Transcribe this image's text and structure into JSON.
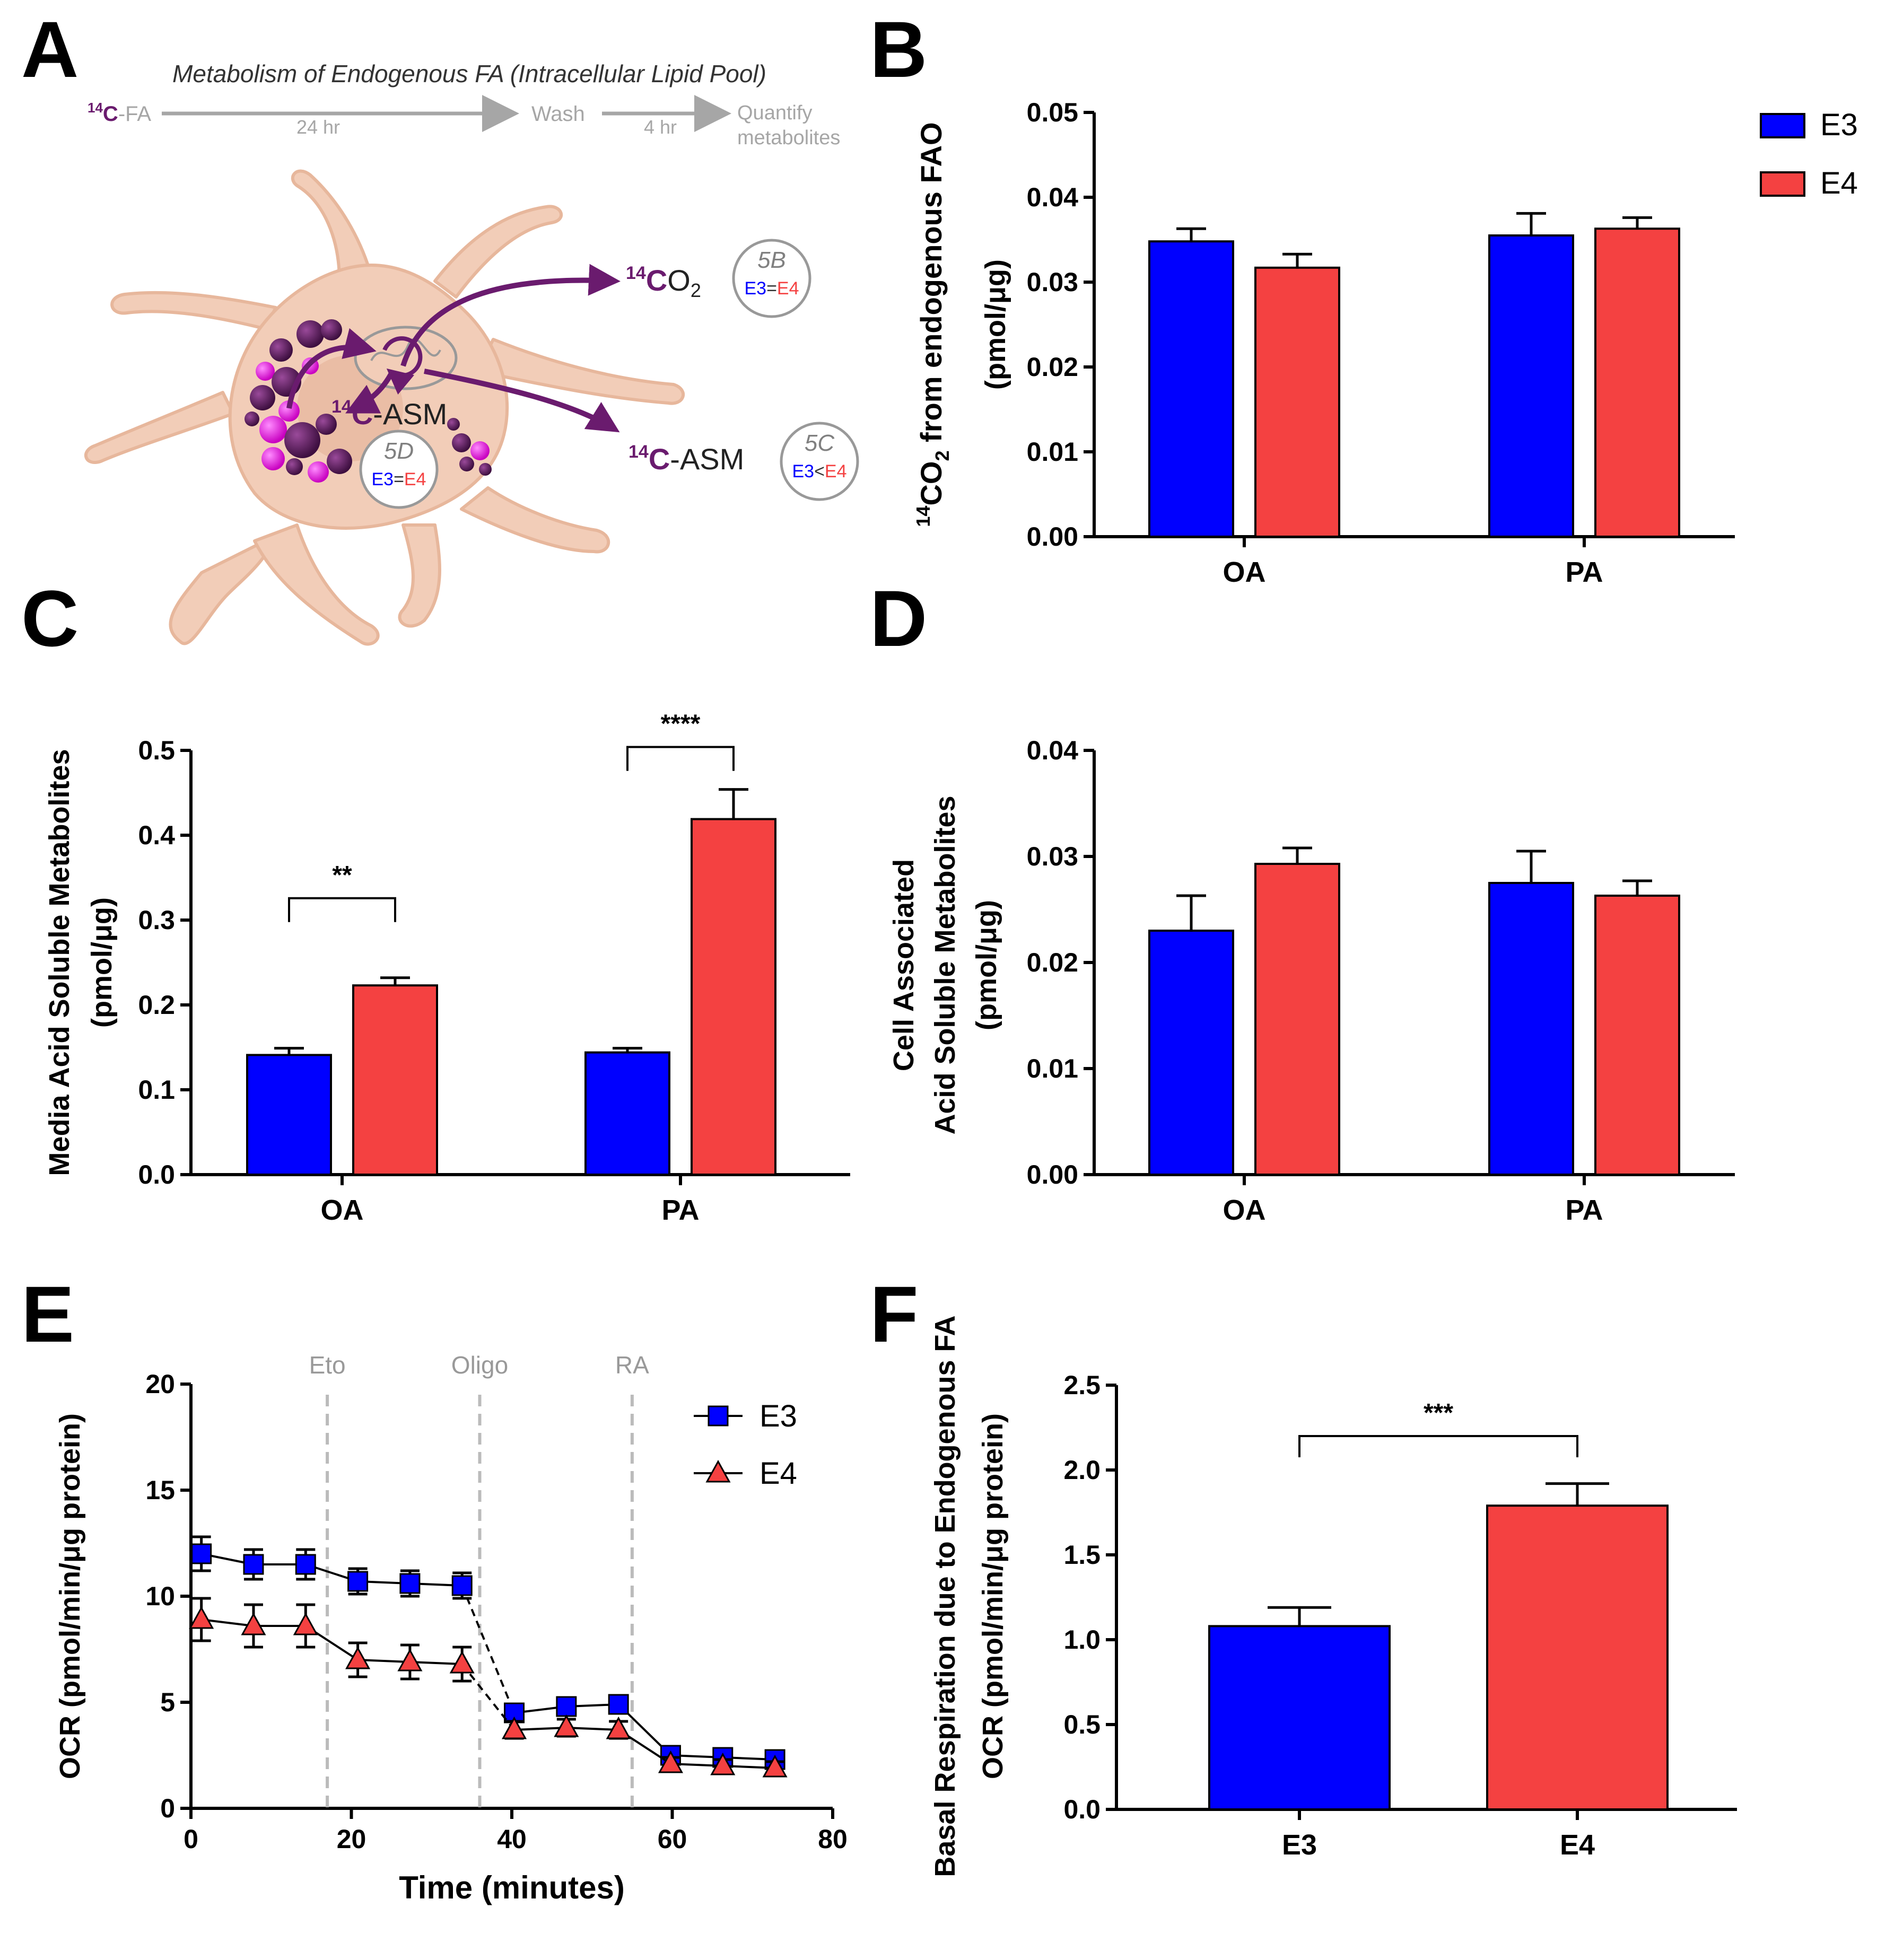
{
  "panel_letters": {
    "a": "A",
    "b": "B",
    "c": "C",
    "d": "D",
    "e": "E",
    "f": "F"
  },
  "colors": {
    "e3": "#0000FF",
    "e4": "#F44141",
    "axis": "#000000",
    "dash": "#BBBBBB",
    "cell": "#F2CDB8",
    "cell_edge": "#E7B79C",
    "dark_droplet": "#5C1D5C",
    "pink_droplet": "#E81FE0",
    "purple": "#6A1B6E",
    "muted": "#808080"
  },
  "schematic": {
    "title": "Metabolism of Endogenous FA (Intracellular Lipid Pool)",
    "fa_label": "FA",
    "isotope": "14",
    "c": "C",
    "hyphen": "-",
    "step1": "24 hr",
    "wash": "Wash",
    "step2": "4 hr",
    "quantify_1": "Quantify",
    "quantify_2": "metabolites",
    "co2_o": "O",
    "co2_sub": "2",
    "asm": "ASM",
    "badge_5b": {
      "ref": "5B",
      "left": "E3",
      "op": "=",
      "right": "E4"
    },
    "badge_5c": {
      "ref": "5C",
      "left": "E3",
      "op": "<",
      "right": "E4"
    },
    "badge_5d": {
      "ref": "5D",
      "left": "E3",
      "op": "=",
      "right": "E4"
    }
  },
  "legend_b": [
    {
      "label": "E3",
      "color_key": "e3"
    },
    {
      "label": "E4",
      "color_key": "e4"
    }
  ],
  "chart_data": [
    {
      "id": "B",
      "type": "bar",
      "ylabel_sup": "14",
      "ylabel_main": "CO",
      "ylabel_sub": "2",
      "ylabel_rest": " from endogenous  FAO",
      "ylabel_units": "(pmol/μg)",
      "ylim": [
        0,
        0.05
      ],
      "yticks": [
        "0.00",
        "0.01",
        "0.02",
        "0.03",
        "0.04",
        "0.05"
      ],
      "categories": [
        "OA",
        "PA"
      ],
      "series": [
        {
          "name": "E3",
          "values": [
            0.0348,
            0.0355
          ],
          "errors": [
            0.0015,
            0.0026
          ]
        },
        {
          "name": "E4",
          "values": [
            0.0317,
            0.0363
          ],
          "errors": [
            0.0016,
            0.0013
          ]
        }
      ],
      "significance": []
    },
    {
      "id": "C",
      "type": "bar",
      "ylabel_lines": [
        "Media Acid Soluble Metabolites",
        "(pmol/μg)"
      ],
      "ylim": [
        0,
        0.5
      ],
      "yticks": [
        "0.0",
        "0.1",
        "0.2",
        "0.3",
        "0.4",
        "0.5"
      ],
      "categories": [
        "OA",
        "PA"
      ],
      "series": [
        {
          "name": "E3",
          "values": [
            0.141,
            0.144
          ],
          "errors": [
            0.008,
            0.005
          ]
        },
        {
          "name": "E4",
          "values": [
            0.223,
            0.419
          ],
          "errors": [
            0.009,
            0.035
          ]
        }
      ],
      "significance": [
        {
          "category": "OA",
          "label": "**"
        },
        {
          "category": "PA",
          "label": "****"
        }
      ]
    },
    {
      "id": "D",
      "type": "bar",
      "ylabel_lines": [
        "Cell Associated",
        "Acid Soluble Metabolites",
        "(pmol/μg)"
      ],
      "ylim": [
        0,
        0.04
      ],
      "yticks": [
        "0.00",
        "0.01",
        "0.02",
        "0.03",
        "0.04"
      ],
      "categories": [
        "OA",
        "PA"
      ],
      "series": [
        {
          "name": "E3",
          "values": [
            0.023,
            0.0275
          ],
          "errors": [
            0.0033,
            0.003
          ]
        },
        {
          "name": "E4",
          "values": [
            0.0293,
            0.0263
          ],
          "errors": [
            0.0015,
            0.0014
          ]
        }
      ],
      "significance": []
    },
    {
      "id": "E",
      "type": "line",
      "xlabel": "Time (minutes)",
      "ylabel": "OCR (pmol/min/μg protein)",
      "xlim": [
        0,
        80
      ],
      "ylim": [
        0,
        20
      ],
      "xticks": [
        "0",
        "20",
        "40",
        "60",
        "80"
      ],
      "yticks": [
        "0",
        "5",
        "10",
        "15",
        "20"
      ],
      "injections": [
        {
          "label": "Eto",
          "x": 17
        },
        {
          "label": "Oligo",
          "x": 36
        },
        {
          "label": "RA",
          "x": 55
        }
      ],
      "x": [
        1.3,
        7.8,
        14.3,
        20.8,
        27.3,
        33.8,
        40.3,
        46.8,
        53.3,
        59.8,
        66.3,
        72.8
      ],
      "series": [
        {
          "name": "E3",
          "marker": "square",
          "values": [
            12.0,
            11.5,
            11.5,
            10.7,
            10.6,
            10.5,
            4.5,
            4.8,
            4.9,
            2.5,
            2.4,
            2.3
          ],
          "errors": [
            0.8,
            0.7,
            0.7,
            0.6,
            0.6,
            0.6,
            0.4,
            0.4,
            0.4,
            0.3,
            0.3,
            0.3
          ]
        },
        {
          "name": "E4",
          "marker": "triangle",
          "values": [
            8.9,
            8.6,
            8.6,
            7.0,
            6.9,
            6.8,
            3.7,
            3.8,
            3.7,
            2.1,
            2.0,
            1.9
          ],
          "errors": [
            1.0,
            1.0,
            1.0,
            0.8,
            0.8,
            0.8,
            0.4,
            0.4,
            0.4,
            0.3,
            0.3,
            0.3
          ]
        }
      ]
    },
    {
      "id": "F",
      "type": "bar",
      "ylabel_lines": [
        "Basal Respiration due to Endogenous FA",
        "OCR (pmol/min/μg protein)"
      ],
      "ylim": [
        0,
        2.5
      ],
      "yticks": [
        "0.0",
        "0.5",
        "1.0",
        "1.5",
        "2.0",
        "2.5"
      ],
      "categories": [
        "E3",
        "E4"
      ],
      "values": [
        1.08,
        1.79
      ],
      "errors": [
        0.11,
        0.13
      ],
      "significance": [
        {
          "label": "***"
        }
      ]
    }
  ]
}
